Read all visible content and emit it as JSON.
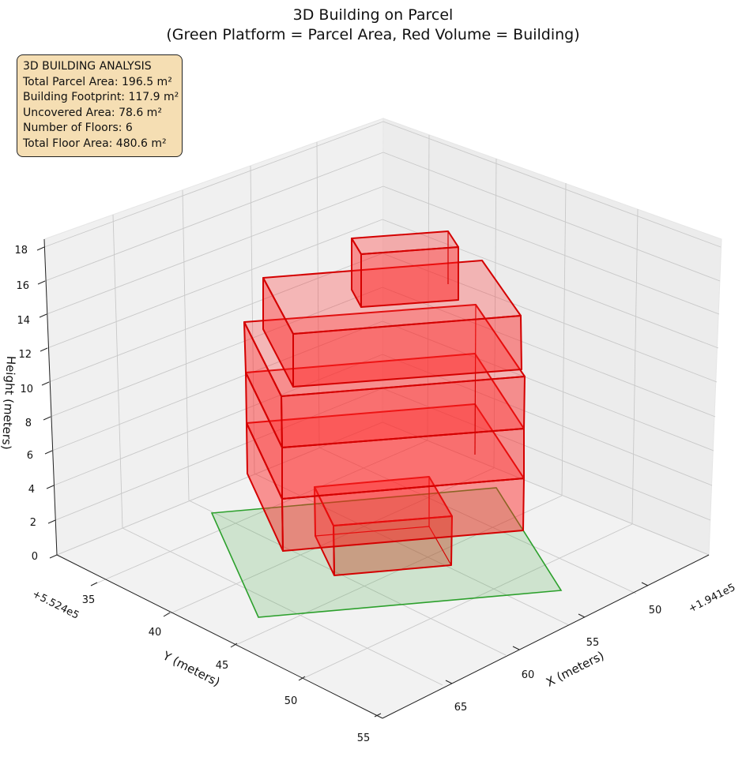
{
  "chart_data": {
    "type": "3d-polygons",
    "title": "3D Building on Parcel",
    "subtitle": "(Green Platform = Parcel Area, Red Volume = Building)",
    "xlabel": "X (meters)",
    "ylabel": "Y (meters)",
    "zlabel": "Height (meters)",
    "x_offset_label": "+1.941e5",
    "y_offset_label": "+5.524e5",
    "x_ticks": [
      "50",
      "55",
      "60",
      "65"
    ],
    "y_ticks": [
      "35",
      "40",
      "45",
      "50",
      "55"
    ],
    "z_ticks": [
      "0",
      "2",
      "4",
      "6",
      "8",
      "10",
      "12",
      "14",
      "16",
      "18"
    ],
    "grid": true,
    "parcel_color": "#2ca02c",
    "building_color": "#ff0000",
    "edge_color": "#d00000"
  },
  "info_box": {
    "lines": [
      "3D BUILDING ANALYSIS",
      "Total Parcel Area: 196.5 m²",
      "Building Footprint: 117.9 m²",
      "Uncovered Area: 78.6 m²",
      "Number of Floors: 6",
      "Total Floor Area: 480.6 m²"
    ]
  }
}
